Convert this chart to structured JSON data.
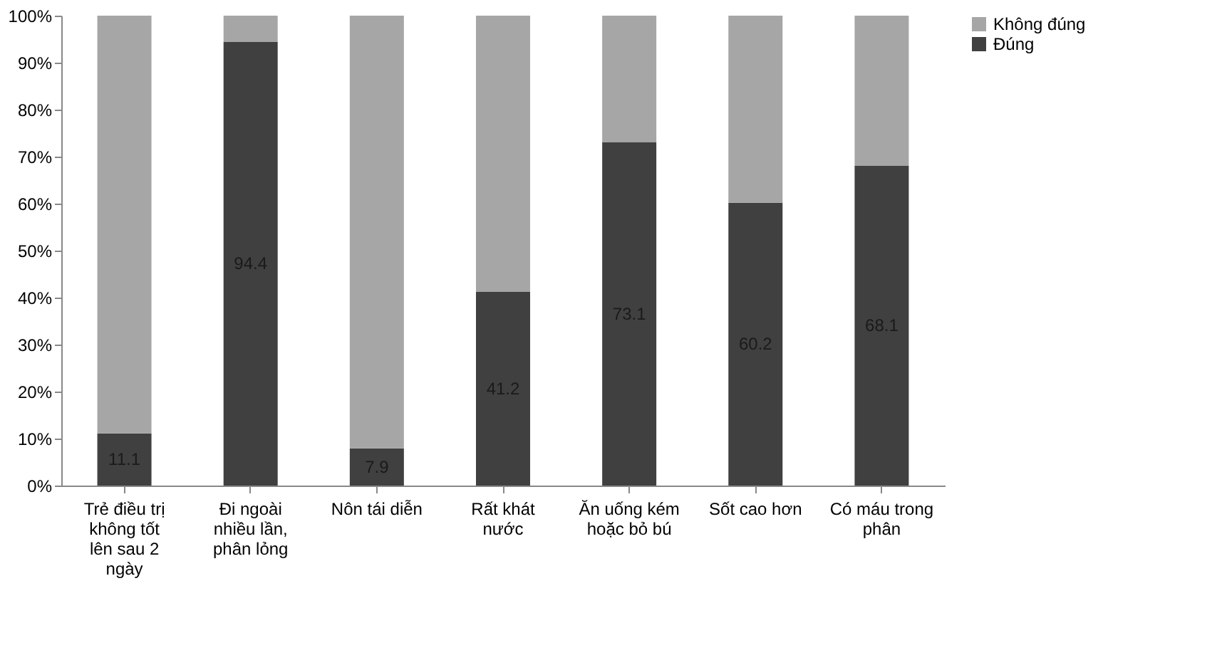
{
  "chart_data": {
    "type": "bar",
    "stacked": true,
    "categories": [
      "Trẻ điều trị không tốt lên sau 2 ngày",
      "Đi ngoài nhiều lần, phân lỏng",
      "Nôn tái diễn",
      "Rất khát nước",
      "Ăn uống kém hoặc bỏ bú",
      "Sốt cao hơn",
      "Có máu trong phân"
    ],
    "series": [
      {
        "name": "Đúng",
        "color": "#404040",
        "values": [
          11.1,
          94.4,
          7.9,
          41.2,
          73.1,
          60.2,
          68.1
        ],
        "value_labels": [
          "11.1",
          "94.4",
          "7.9",
          "41.2",
          "73.1",
          "60.2",
          "68.1"
        ]
      },
      {
        "name": "Không đúng",
        "color": "#a6a6a6",
        "values": [
          88.9,
          5.6,
          92.1,
          58.8,
          26.9,
          39.8,
          31.9
        ]
      }
    ],
    "ylim": [
      0,
      100
    ],
    "yticks": [
      {
        "value": 0,
        "label": "0%"
      },
      {
        "value": 10,
        "label": "10%"
      },
      {
        "value": 20,
        "label": "20%"
      },
      {
        "value": 30,
        "label": "30%"
      },
      {
        "value": 40,
        "label": "40%"
      },
      {
        "value": 50,
        "label": "50%"
      },
      {
        "value": 60,
        "label": "60%"
      },
      {
        "value": 70,
        "label": "70%"
      },
      {
        "value": 80,
        "label": "80%"
      },
      {
        "value": 90,
        "label": "90%"
      },
      {
        "value": 100,
        "label": "100%"
      }
    ],
    "grid": false,
    "legend": "right"
  }
}
